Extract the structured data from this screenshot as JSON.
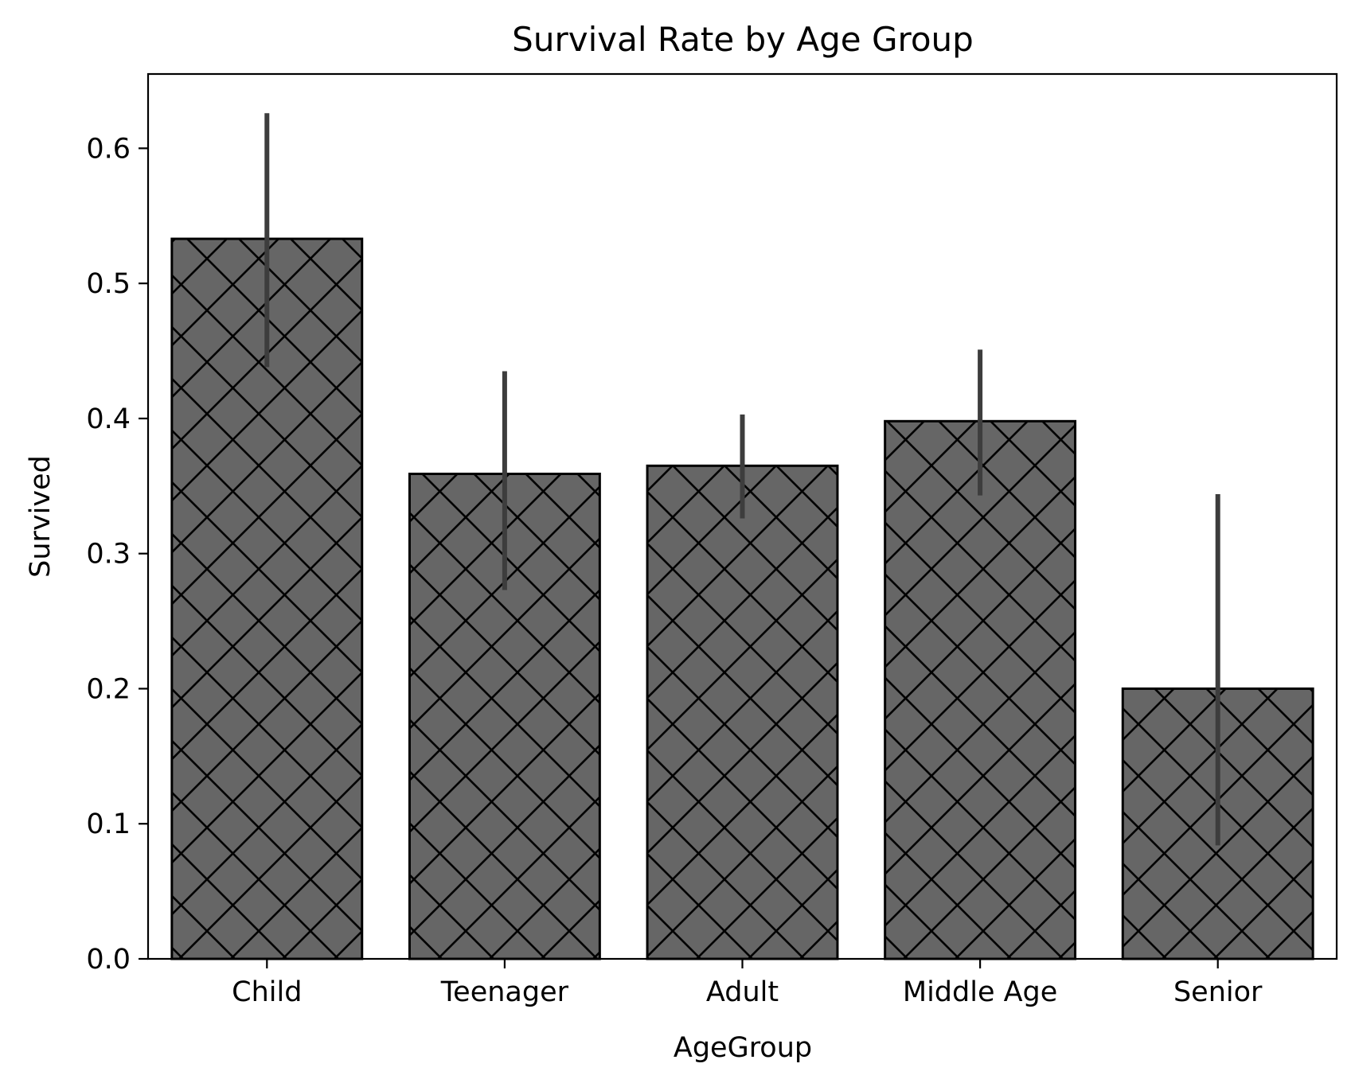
{
  "chart_data": {
    "type": "bar",
    "title": "Survival Rate by Age Group",
    "xlabel": "AgeGroup",
    "ylabel": "Survived",
    "categories": [
      "Child",
      "Teenager",
      "Adult",
      "Middle Age",
      "Senior"
    ],
    "values": [
      0.533,
      0.359,
      0.365,
      0.398,
      0.2
    ],
    "error_low": [
      0.438,
      0.273,
      0.326,
      0.343,
      0.084
    ],
    "error_high": [
      0.626,
      0.435,
      0.403,
      0.451,
      0.344
    ],
    "ylim": [
      0,
      0.655
    ],
    "yticks": [
      0.0,
      0.1,
      0.2,
      0.3,
      0.4,
      0.5,
      0.6
    ],
    "ytick_labels": [
      "0.0",
      "0.1",
      "0.2",
      "0.3",
      "0.4",
      "0.5",
      "0.6"
    ],
    "grid": false,
    "legend": "none",
    "colors": {
      "bar_fill": "#666666",
      "bar_edge": "#000000",
      "hatch": "#000000",
      "error_bar": "#3d3d3d"
    },
    "hatch": "x"
  }
}
